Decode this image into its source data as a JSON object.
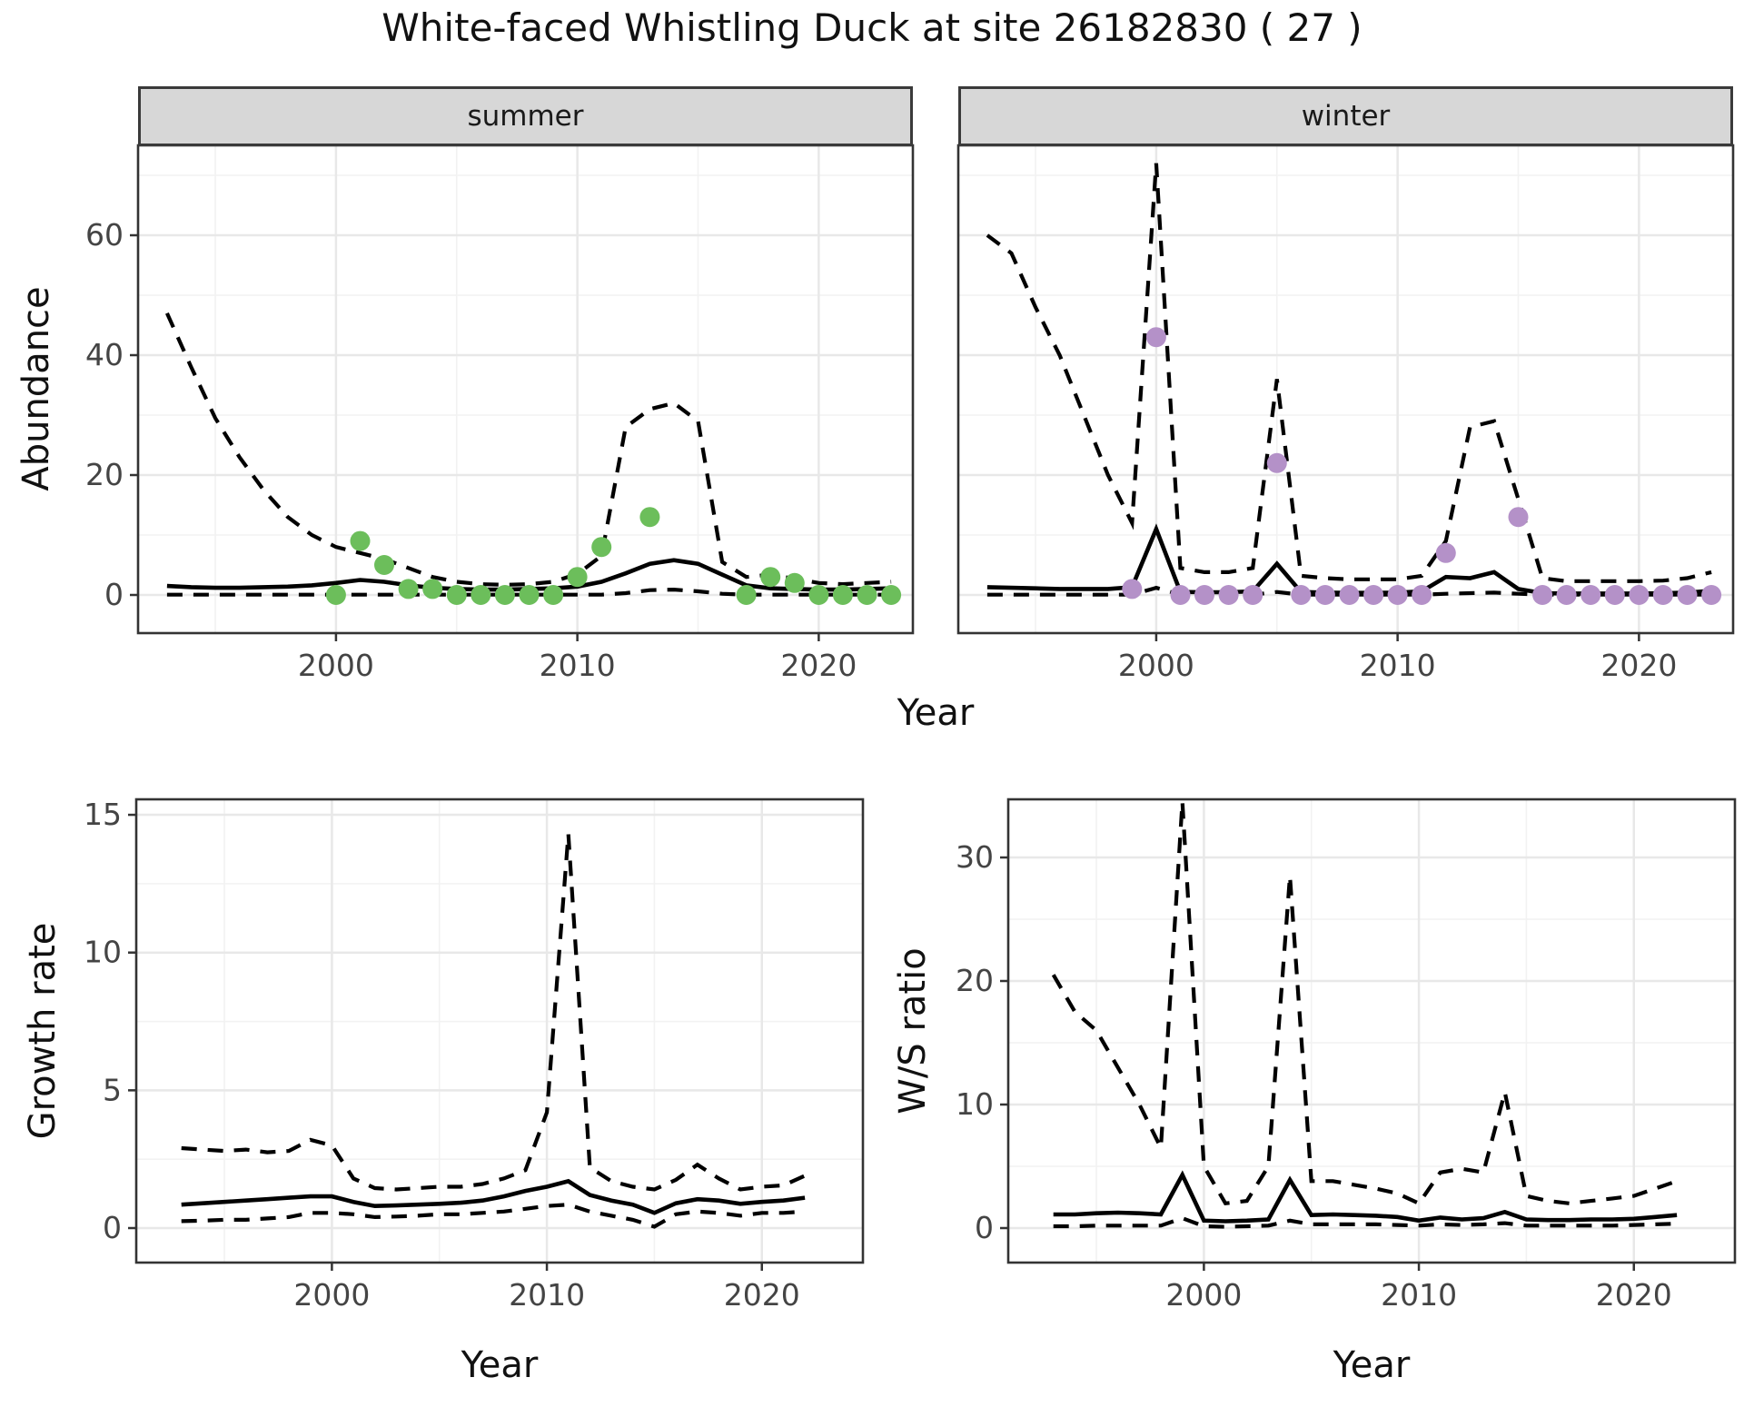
{
  "title": "White-faced Whistling Duck at site 26182830 ( 27 )",
  "facets": [
    {
      "label": "summer"
    },
    {
      "label": "winter"
    }
  ],
  "axes": {
    "abundance_label": "Abundance",
    "year_label": "Year",
    "growth_label": "Growth rate",
    "ws_label": "W/S ratio"
  },
  "colors": {
    "summer_point": "#6cbe5b",
    "winter_point": "#b491c8",
    "line": "#000000",
    "strip_bg": "#d7d7d7",
    "panel_border": "#333333",
    "grid_major": "#e8e8e8",
    "grid_minor": "#f2f2f2",
    "tick_text": "#444444",
    "background": "#ffffff"
  },
  "chart_data": [
    {
      "id": "abundance-summer",
      "type": "line",
      "facet": "summer",
      "xlabel": "Year",
      "ylabel": "Abundance",
      "x_ticks": [
        2000,
        2010,
        2020
      ],
      "y_ticks": [
        0,
        20,
        40,
        60
      ],
      "xlim": [
        1991.8,
        2023.9
      ],
      "ylim": [
        -6.4,
        75
      ],
      "grid": true,
      "legend": "none",
      "years": [
        1993,
        1994,
        1995,
        1996,
        1997,
        1998,
        1999,
        2000,
        2001,
        2002,
        2003,
        2004,
        2005,
        2006,
        2007,
        2008,
        2009,
        2010,
        2011,
        2012,
        2013,
        2014,
        2015,
        2016,
        2017,
        2018,
        2019,
        2020,
        2021,
        2022,
        2023
      ],
      "series": [
        {
          "name": "median",
          "linetype": "solid",
          "values": [
            1.5,
            1.3,
            1.2,
            1.2,
            1.3,
            1.4,
            1.6,
            2.0,
            2.5,
            2.2,
            1.6,
            1.2,
            1.0,
            0.9,
            0.9,
            1.0,
            1.1,
            1.4,
            2.2,
            3.6,
            5.2,
            5.8,
            5.2,
            3.4,
            1.6,
            1.1,
            1.0,
            0.9,
            0.9,
            1.0,
            1.1
          ]
        },
        {
          "name": "upper CI",
          "linetype": "dashed",
          "values": [
            47,
            38,
            29.5,
            23,
            17.5,
            13,
            10,
            8,
            7,
            6,
            4.5,
            3,
            2.2,
            1.8,
            1.7,
            1.8,
            2.2,
            3.5,
            6.5,
            28,
            31,
            32,
            29,
            5.5,
            3,
            3.4,
            2.7,
            2.0,
            1.8,
            2.0,
            2.2
          ]
        },
        {
          "name": "lower CI",
          "linetype": "dashed",
          "values": [
            0.05,
            0.05,
            0.05,
            0.05,
            0.05,
            0.05,
            0.05,
            0.05,
            0.05,
            0.05,
            0.05,
            0.05,
            0.05,
            0.05,
            0.05,
            0.05,
            0.05,
            0.05,
            0.05,
            0.3,
            0.8,
            0.9,
            0.6,
            0.2,
            0.05,
            0.05,
            0.05,
            0.05,
            0.05,
            0.05,
            0.05
          ]
        }
      ],
      "points": {
        "name": "observed counts",
        "color_key": "summer_point",
        "years": [
          2000,
          2001,
          2002,
          2003,
          2004,
          2005,
          2006,
          2007,
          2008,
          2009,
          2010,
          2011,
          2013,
          2017,
          2018,
          2019,
          2020,
          2021,
          2022,
          2023
        ],
        "values": [
          0,
          9,
          5,
          1,
          1,
          0,
          0,
          0,
          0,
          0,
          3,
          8,
          13,
          0,
          3,
          2,
          0,
          0,
          0,
          0
        ]
      }
    },
    {
      "id": "abundance-winter",
      "type": "line",
      "facet": "winter",
      "xlabel": "Year",
      "ylabel": "Abundance",
      "x_ticks": [
        2000,
        2010,
        2020
      ],
      "y_ticks": [
        0,
        20,
        40,
        60
      ],
      "xlim": [
        1991.8,
        2023.9
      ],
      "ylim": [
        -6.4,
        75
      ],
      "grid": true,
      "legend": "none",
      "years": [
        1993,
        1994,
        1995,
        1996,
        1997,
        1998,
        1999,
        2000,
        2001,
        2002,
        2003,
        2004,
        2005,
        2006,
        2007,
        2008,
        2009,
        2010,
        2011,
        2012,
        2013,
        2014,
        2015,
        2016,
        2017,
        2018,
        2019,
        2020,
        2021,
        2022,
        2023
      ],
      "series": [
        {
          "name": "median",
          "linetype": "solid",
          "values": [
            1.3,
            1.2,
            1.1,
            1.0,
            1.0,
            1.0,
            1.3,
            11,
            0.5,
            0.45,
            0.45,
            0.6,
            5.2,
            0.5,
            0.4,
            0.35,
            0.35,
            0.4,
            0.6,
            3.0,
            2.8,
            3.8,
            1.0,
            0.3,
            0.25,
            0.25,
            0.25,
            0.25,
            0.3,
            0.4,
            0.7
          ]
        },
        {
          "name": "upper CI",
          "linetype": "dashed",
          "values": [
            60,
            57,
            48,
            40,
            30,
            20,
            12,
            72,
            4.5,
            3.8,
            3.8,
            4.5,
            36,
            3.2,
            2.8,
            2.6,
            2.6,
            2.6,
            3.2,
            9,
            28,
            29,
            16,
            2.8,
            2.3,
            2.3,
            2.3,
            2.3,
            2.4,
            2.8,
            3.8
          ]
        },
        {
          "name": "lower CI",
          "linetype": "dashed",
          "values": [
            0.05,
            0.05,
            0.05,
            0.05,
            0.05,
            0.05,
            0.05,
            1.2,
            0.05,
            0.05,
            0.05,
            0.05,
            0.5,
            0.05,
            0.05,
            0.05,
            0.05,
            0.05,
            0.05,
            0.2,
            0.3,
            0.4,
            0.2,
            0.05,
            0.05,
            0.05,
            0.05,
            0.05,
            0.05,
            0.05,
            0.05
          ]
        }
      ],
      "points": {
        "name": "observed counts",
        "color_key": "winter_point",
        "years": [
          1999,
          2000,
          2001,
          2002,
          2003,
          2004,
          2005,
          2006,
          2007,
          2008,
          2009,
          2010,
          2011,
          2012,
          2015,
          2016,
          2017,
          2018,
          2019,
          2020,
          2021,
          2022,
          2023
        ],
        "values": [
          1,
          43,
          0,
          0,
          0,
          0,
          22,
          0,
          0,
          0,
          0,
          0,
          0,
          7,
          13,
          0,
          0,
          0,
          0,
          0,
          0,
          0,
          0
        ]
      }
    },
    {
      "id": "growth-rate",
      "type": "line",
      "facet": null,
      "xlabel": "Year",
      "ylabel": "Growth rate",
      "x_ticks": [
        2000,
        2010,
        2020
      ],
      "y_ticks": [
        0,
        5,
        10,
        15
      ],
      "xlim": [
        1990.9,
        2024.7
      ],
      "ylim": [
        -1.25,
        15.6
      ],
      "grid": true,
      "legend": "none",
      "years": [
        1993,
        1994,
        1995,
        1996,
        1997,
        1998,
        1999,
        2000,
        2001,
        2002,
        2003,
        2004,
        2005,
        2006,
        2007,
        2008,
        2009,
        2010,
        2011,
        2012,
        2013,
        2014,
        2015,
        2016,
        2017,
        2018,
        2019,
        2020,
        2021,
        2022
      ],
      "series": [
        {
          "name": "median",
          "linetype": "solid",
          "values": [
            0.85,
            0.9,
            0.95,
            1.0,
            1.05,
            1.1,
            1.15,
            1.15,
            0.95,
            0.8,
            0.82,
            0.85,
            0.88,
            0.92,
            1.0,
            1.15,
            1.35,
            1.5,
            1.7,
            1.2,
            1.0,
            0.85,
            0.55,
            0.9,
            1.05,
            1.0,
            0.88,
            0.95,
            1.0,
            1.1
          ]
        },
        {
          "name": "upper CI",
          "linetype": "dashed",
          "values": [
            2.9,
            2.85,
            2.8,
            2.85,
            2.75,
            2.8,
            3.2,
            3.0,
            1.8,
            1.45,
            1.4,
            1.45,
            1.5,
            1.5,
            1.6,
            1.8,
            2.1,
            4.2,
            14.3,
            2.2,
            1.7,
            1.5,
            1.4,
            1.75,
            2.3,
            1.8,
            1.4,
            1.5,
            1.55,
            1.9
          ]
        },
        {
          "name": "lower CI",
          "linetype": "dashed",
          "values": [
            0.25,
            0.27,
            0.3,
            0.3,
            0.35,
            0.4,
            0.55,
            0.55,
            0.5,
            0.4,
            0.42,
            0.45,
            0.5,
            0.5,
            0.55,
            0.6,
            0.7,
            0.8,
            0.85,
            0.6,
            0.45,
            0.3,
            0.05,
            0.5,
            0.6,
            0.55,
            0.45,
            0.55,
            0.55,
            0.6
          ]
        }
      ],
      "points": null
    },
    {
      "id": "ws-ratio",
      "type": "line",
      "facet": null,
      "xlabel": "Year",
      "ylabel": "W/S ratio",
      "x_ticks": [
        2000,
        2010,
        2020
      ],
      "y_ticks": [
        0,
        10,
        20,
        30
      ],
      "xlim": [
        1990.9,
        2024.7
      ],
      "ylim": [
        -2.8,
        34.7
      ],
      "grid": true,
      "legend": "none",
      "years": [
        1993,
        1994,
        1995,
        1996,
        1997,
        1998,
        1999,
        2000,
        2001,
        2002,
        2003,
        2004,
        2005,
        2006,
        2007,
        2008,
        2009,
        2010,
        2011,
        2012,
        2013,
        2014,
        2015,
        2016,
        2017,
        2018,
        2019,
        2020,
        2021,
        2022
      ],
      "series": [
        {
          "name": "median",
          "linetype": "solid",
          "values": [
            1.1,
            1.1,
            1.2,
            1.25,
            1.2,
            1.1,
            4.3,
            0.6,
            0.55,
            0.6,
            0.7,
            3.9,
            1.05,
            1.1,
            1.05,
            1.0,
            0.9,
            0.6,
            0.85,
            0.7,
            0.8,
            1.3,
            0.7,
            0.65,
            0.65,
            0.7,
            0.7,
            0.75,
            0.9,
            1.05
          ]
        },
        {
          "name": "upper CI",
          "linetype": "dashed",
          "values": [
            20.5,
            17.5,
            16,
            13,
            10,
            6.5,
            34.5,
            5,
            2,
            2.2,
            5,
            28.5,
            3.8,
            3.8,
            3.5,
            3.2,
            2.8,
            2,
            4.5,
            4.8,
            4.5,
            11,
            2.6,
            2.2,
            2,
            2.2,
            2.4,
            2.6,
            3.2,
            3.8
          ]
        },
        {
          "name": "lower CI",
          "linetype": "dashed",
          "values": [
            0.15,
            0.15,
            0.2,
            0.2,
            0.2,
            0.2,
            0.8,
            0.15,
            0.1,
            0.15,
            0.2,
            0.6,
            0.3,
            0.3,
            0.3,
            0.3,
            0.25,
            0.2,
            0.3,
            0.25,
            0.3,
            0.4,
            0.2,
            0.2,
            0.2,
            0.2,
            0.2,
            0.25,
            0.3,
            0.35
          ]
        }
      ],
      "points": null
    }
  ]
}
